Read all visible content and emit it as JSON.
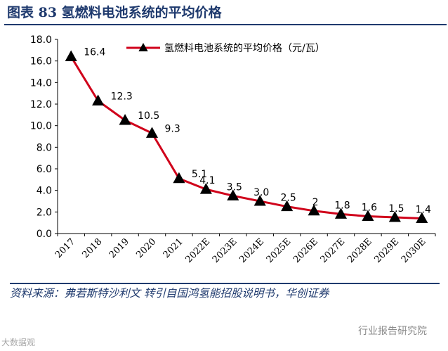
{
  "figure": {
    "title": "图表 83  氢燃料电池系统的平均价格",
    "source": "资料来源：弗若斯特沙利文 转引自国鸿氢能招股说明书，华创证券"
  },
  "watermarks": {
    "left": "大数据观",
    "right": "行业报告研究院"
  },
  "chart_data": {
    "type": "line",
    "categories": [
      "2017",
      "2018",
      "2019",
      "2020",
      "2021",
      "2022E",
      "2023E",
      "2024E",
      "2025E",
      "2026E",
      "2027E",
      "2028E",
      "2029E",
      "2030E"
    ],
    "series": [
      {
        "name": "氢燃料电池系统的平均价格（元/瓦）",
        "values": [
          16.4,
          12.3,
          10.5,
          9.3,
          5.1,
          4.1,
          3.5,
          3.0,
          2.5,
          2.1,
          1.8,
          1.6,
          1.5,
          1.4
        ],
        "color": "#d0021b",
        "marker": "triangle",
        "marker_color": "#000000"
      }
    ],
    "data_labels": [
      "16.4",
      "12.3",
      "10.5",
      "9.3",
      "5.1",
      "4.1",
      "3.5",
      "3.0",
      "2.5",
      "2",
      "1.8",
      "1.6",
      "1.5",
      "1.4"
    ],
    "ylim": [
      0,
      18
    ],
    "yticks": [
      "0.0",
      "2.0",
      "4.0",
      "6.0",
      "8.0",
      "10.0",
      "12.0",
      "14.0",
      "16.0",
      "18.0"
    ],
    "grid": false,
    "legend": "top-right",
    "xlabel": "",
    "ylabel": ""
  }
}
